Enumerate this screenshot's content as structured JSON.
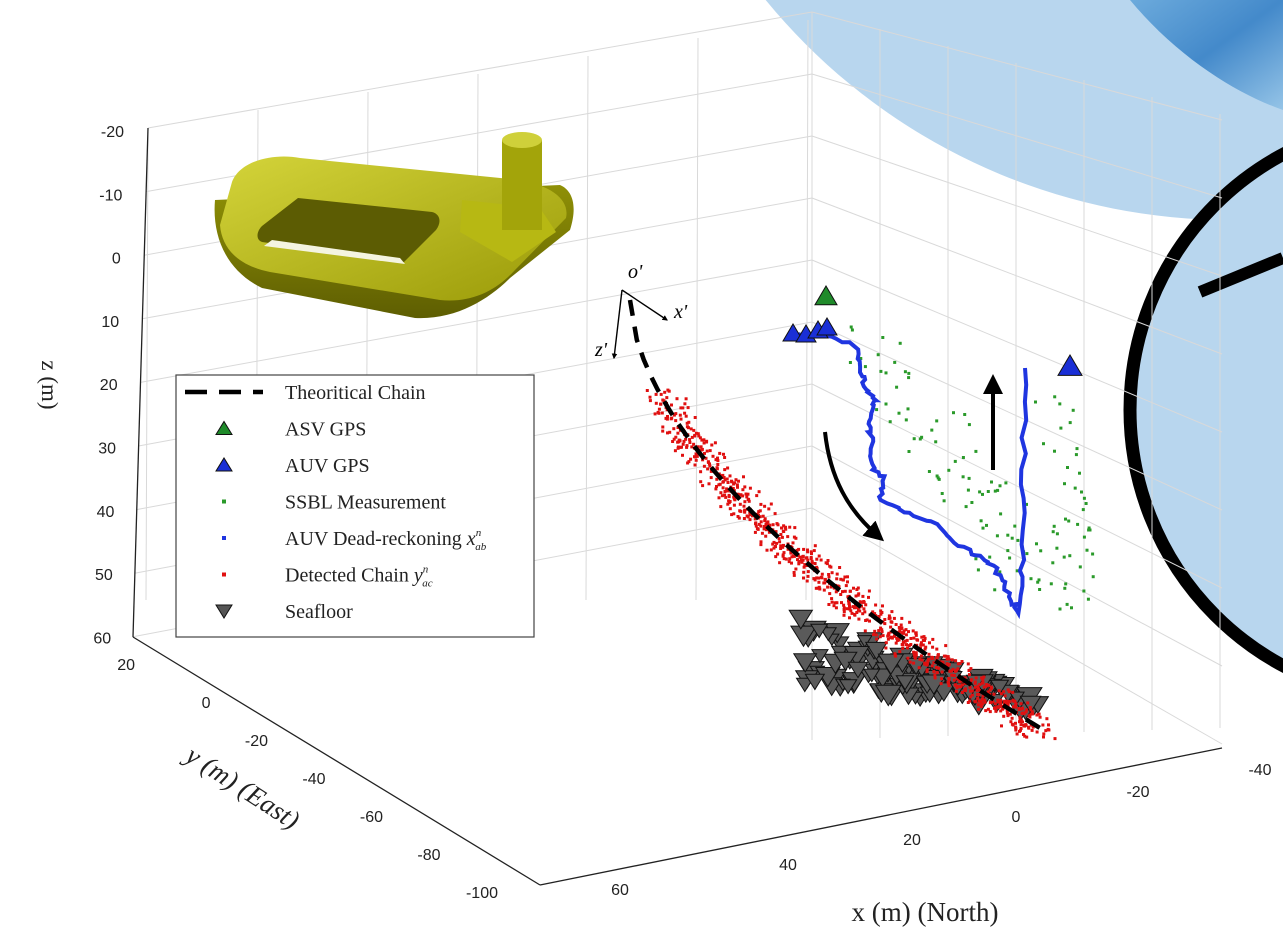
{
  "chart_data": {
    "type": "scatter",
    "title": "",
    "axes": {
      "x": {
        "label": "x (m) (North)",
        "ticks": [
          "60",
          "40",
          "20",
          "0",
          "-20",
          "-40"
        ]
      },
      "y": {
        "label": "y (m) (East)",
        "ticks": [
          "20",
          "0",
          "-20",
          "-40",
          "-60",
          "-80",
          "-100"
        ]
      },
      "z": {
        "label": "z (m)",
        "ticks": [
          "-20",
          "-10",
          "0",
          "10",
          "20",
          "30",
          "40",
          "50",
          "60"
        ],
        "reversed": true
      }
    },
    "frame_labels": {
      "origin": "o'",
      "x_axis": "x'",
      "z_axis": "z'"
    },
    "grid": true,
    "legend": {
      "position": "middle-left",
      "entries": [
        {
          "label": "Theoritical Chain",
          "marker": "dashed-line",
          "color": "#000000"
        },
        {
          "label": "ASV GPS",
          "marker": "triangle-up",
          "color": "#1f8a2a"
        },
        {
          "label": "AUV GPS",
          "marker": "triangle-up",
          "color": "#1a2fd6"
        },
        {
          "label": "SSBL Measurement",
          "marker": "dot",
          "color": "#2a9a2a"
        },
        {
          "label": "AUV Dead-reckoning",
          "math": "x",
          "sup": "n",
          "sub": "ab",
          "marker": "dot",
          "color": "#1f35e0"
        },
        {
          "label": "Detected Chain",
          "math": "y",
          "sup": "n",
          "sub": "ac",
          "marker": "dot",
          "color": "#e01010"
        },
        {
          "label": "Seafloor",
          "marker": "triangle-down",
          "color": "#555555"
        }
      ]
    },
    "annotations": {
      "buoy_model": "yellow-buoy-3d",
      "motion_arrows": [
        "curved-down-arrow",
        "straight-up-arrow"
      ]
    },
    "colors": {
      "background_circle": "#b8d6ee",
      "circle_outline": "#000000",
      "buoy": "#a9ab0c"
    }
  }
}
